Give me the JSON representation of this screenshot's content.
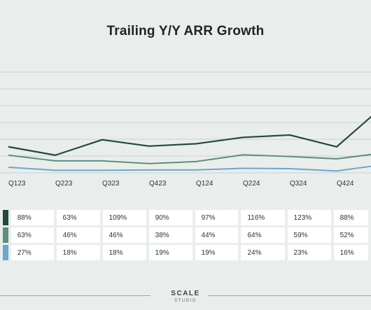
{
  "chart_data": {
    "type": "line",
    "title": "Trailing Y/Y ARR Growth",
    "categories": [
      "Q123",
      "Q223",
      "Q323",
      "Q423",
      "Q124",
      "Q224",
      "Q324",
      "Q424",
      ""
    ],
    "series": [
      {
        "color": "#24493a",
        "values": [
          88,
          63,
          109,
          90,
          97,
          116,
          123,
          88,
          210
        ]
      },
      {
        "color": "#5e8f79",
        "values": [
          63,
          46,
          46,
          38,
          44,
          64,
          59,
          52,
          70
        ]
      },
      {
        "color": "#6ea6cc",
        "values": [
          27,
          18,
          18,
          19,
          19,
          24,
          23,
          16,
          35
        ]
      }
    ],
    "grid": true,
    "legend": "none"
  },
  "table": {
    "rows": [
      [
        "88%",
        "63%",
        "109%",
        "90%",
        "97%",
        "116%",
        "123%",
        "88%"
      ],
      [
        "63%",
        "46%",
        "46%",
        "38%",
        "44%",
        "64%",
        "59%",
        "52%"
      ],
      [
        "27%",
        "18%",
        "18%",
        "19%",
        "19%",
        "24%",
        "23%",
        "16%"
      ]
    ]
  },
  "logo": {
    "line1": "SCALE",
    "line2": "STUDIO"
  }
}
